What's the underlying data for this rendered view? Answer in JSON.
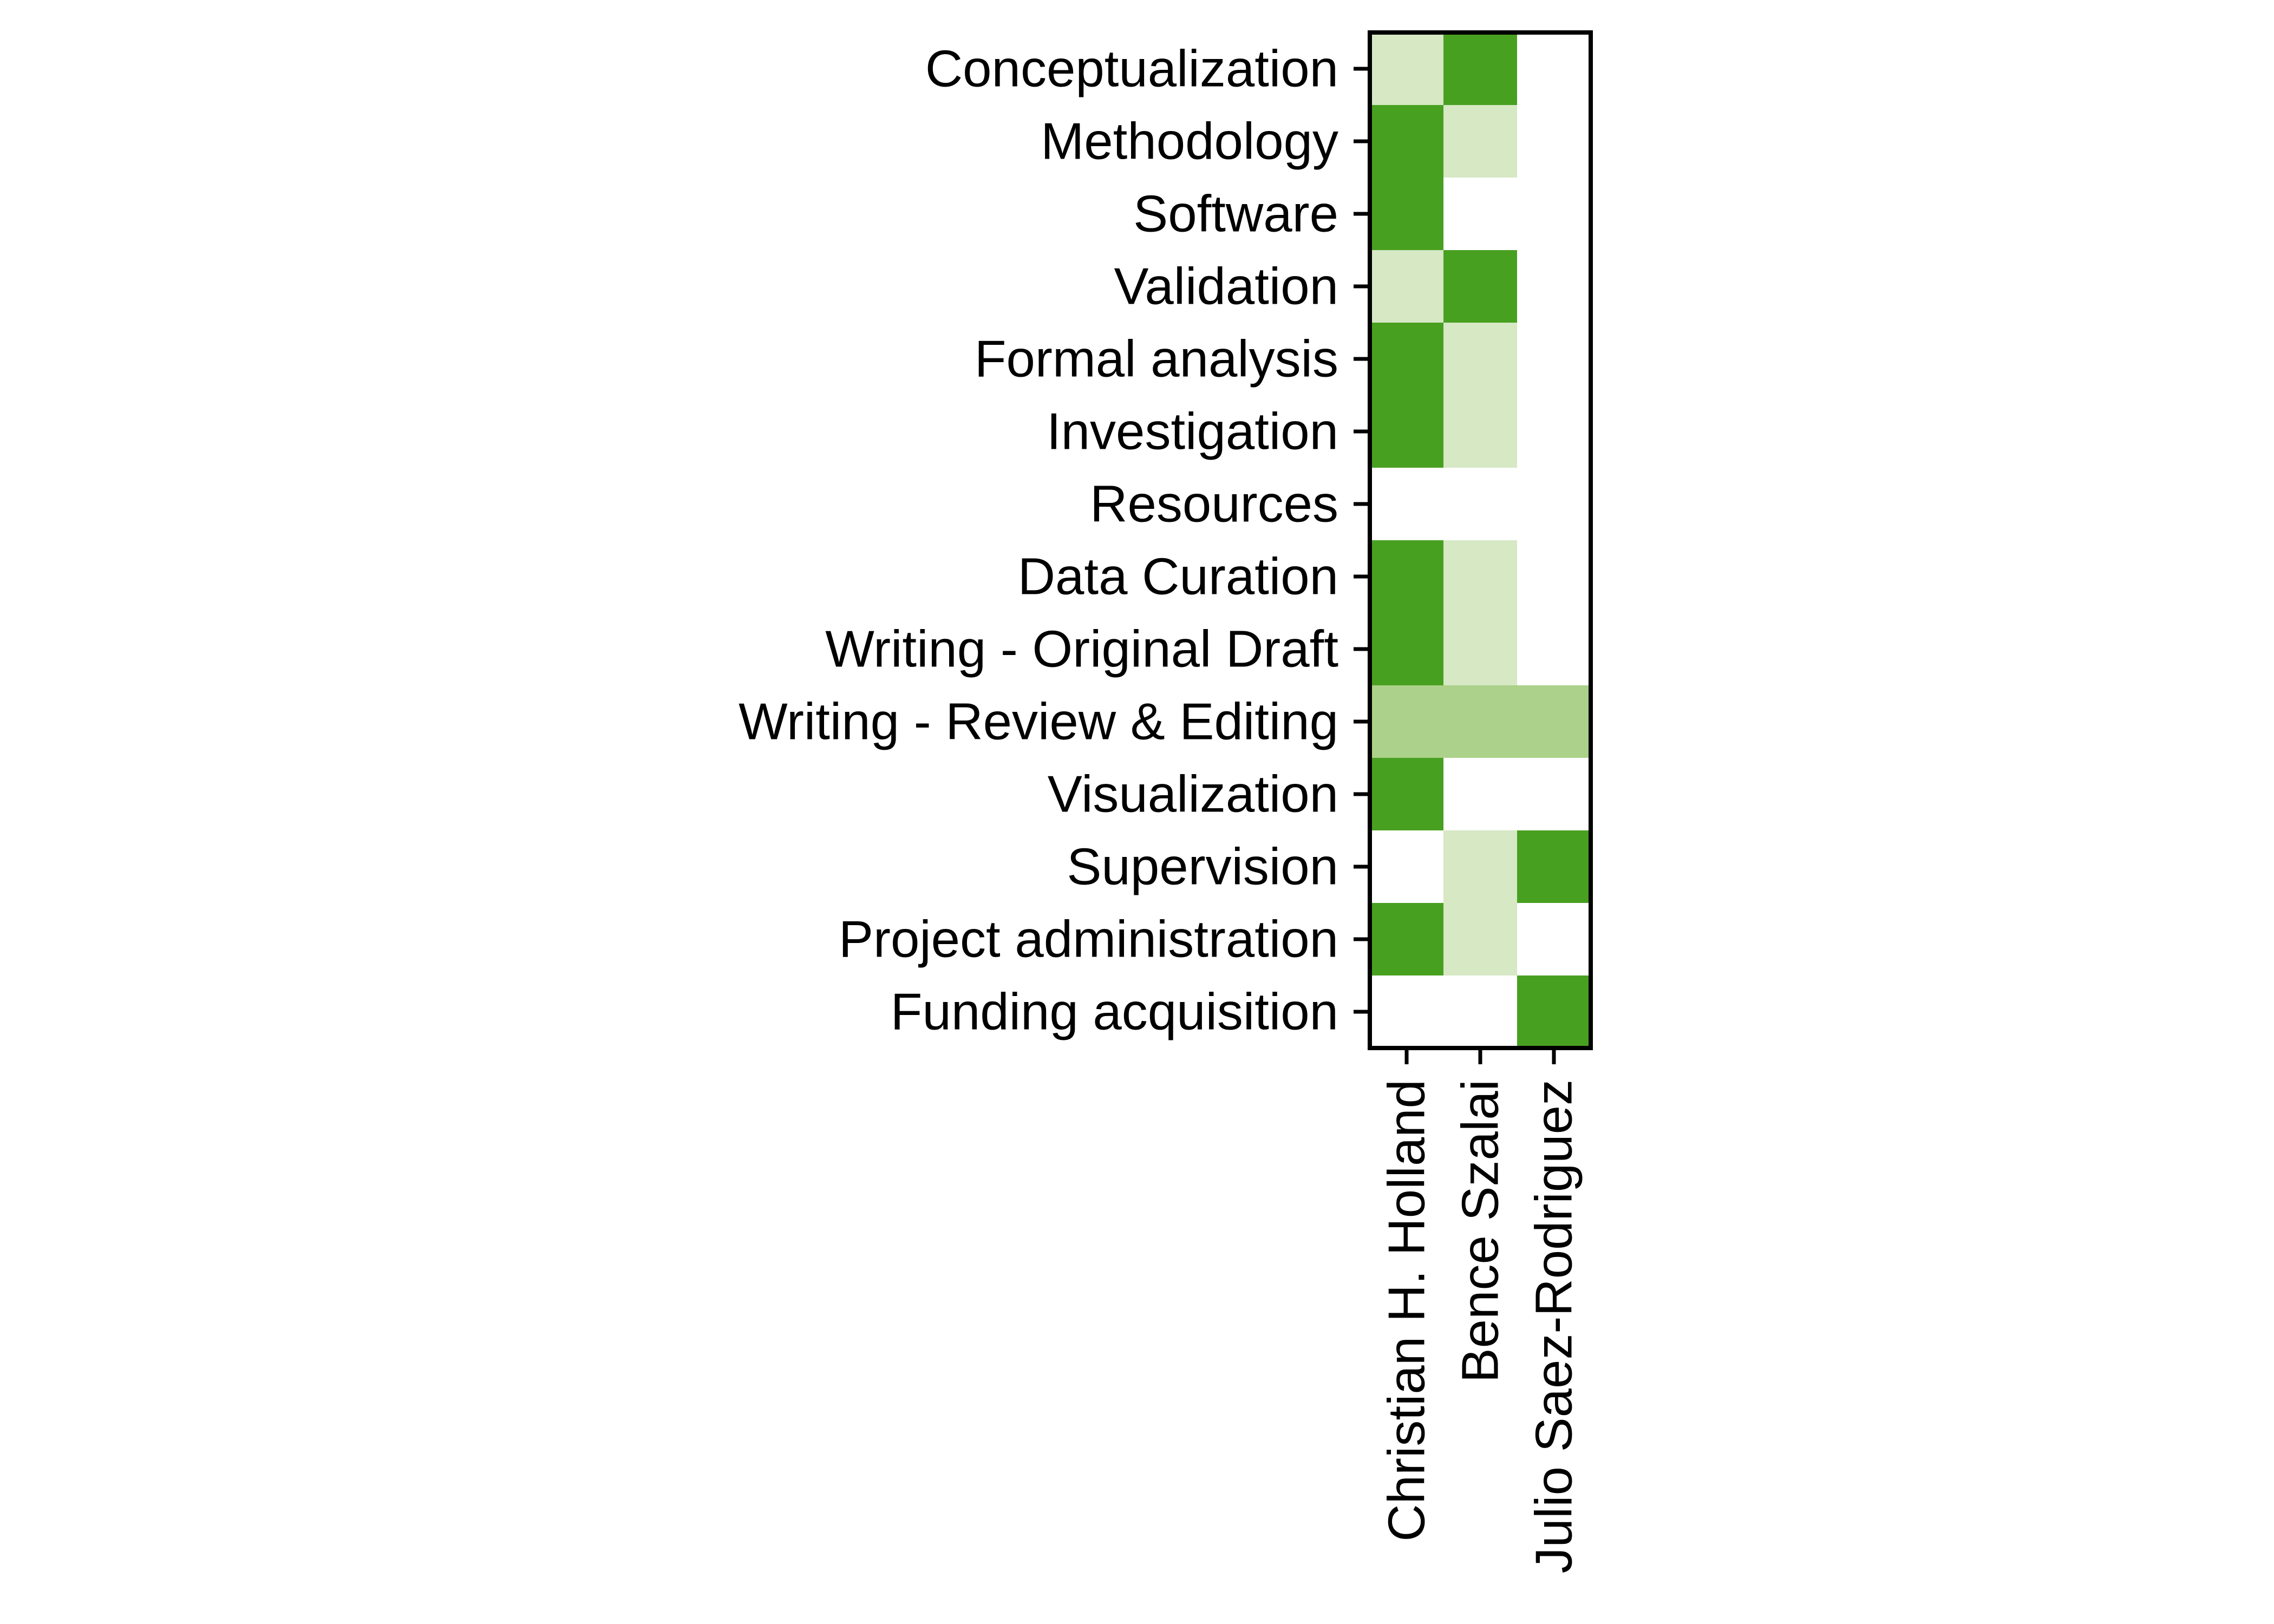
{
  "chart_data": {
    "type": "heatmap",
    "title": "",
    "xlabel": "",
    "ylabel": "",
    "rows": [
      "Conceptualization",
      "Methodology",
      "Software",
      "Validation",
      "Formal analysis",
      "Investigation",
      "Resources",
      "Data Curation",
      "Writing - Original Draft",
      "Writing - Review & Editing",
      "Visualization",
      "Supervision",
      "Project administration",
      "Funding acquisition"
    ],
    "columns": [
      "Christian H. Holland",
      "Bence Szalai",
      "Julio Saez-Rodriguez"
    ],
    "levels": {
      "0": "#ffffff",
      "1": "#d6e8c4",
      "2": "#acd18a",
      "3": "#48a020"
    },
    "values": [
      [
        1,
        3,
        0
      ],
      [
        3,
        1,
        0
      ],
      [
        3,
        0,
        0
      ],
      [
        1,
        3,
        0
      ],
      [
        3,
        1,
        0
      ],
      [
        3,
        1,
        0
      ],
      [
        0,
        0,
        0
      ],
      [
        3,
        1,
        0
      ],
      [
        3,
        1,
        0
      ],
      [
        2,
        2,
        2
      ],
      [
        3,
        0,
        0
      ],
      [
        0,
        1,
        3
      ],
      [
        3,
        1,
        0
      ],
      [
        0,
        0,
        3
      ]
    ],
    "grid": false,
    "legend": "none"
  }
}
